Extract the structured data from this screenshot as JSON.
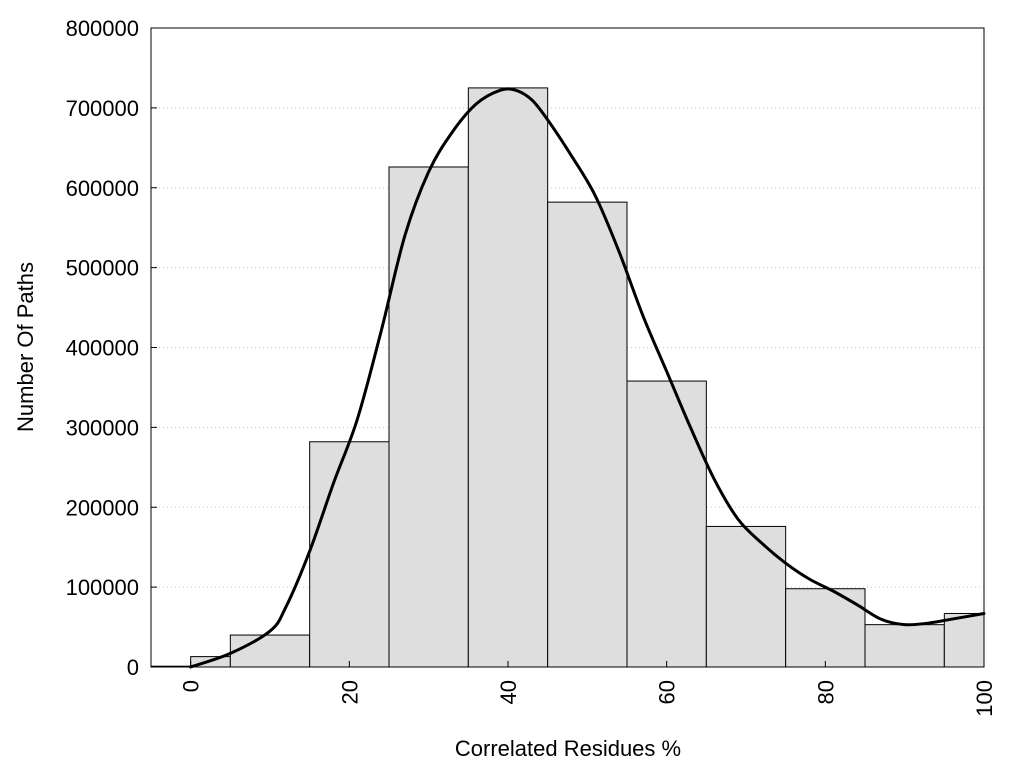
{
  "chart_data": {
    "type": "bar",
    "title": "",
    "xlabel": "Correlated Residues %",
    "ylabel": "Number Of Paths",
    "xlim": [
      -5,
      100
    ],
    "ylim": [
      0,
      800000
    ],
    "xticks": [
      "0",
      "20",
      "40",
      "60",
      "80",
      "100"
    ],
    "yticks": [
      "0",
      "100000",
      "200000",
      "300000",
      "400000",
      "500000",
      "600000",
      "700000",
      "800000"
    ],
    "grid": true,
    "bar_color": "#dedede",
    "edge_color": "#000000",
    "bins": [
      {
        "x0": -5,
        "x1": 0,
        "value": 1000
      },
      {
        "x0": 0,
        "x1": 5,
        "value": 13000
      },
      {
        "x0": 5,
        "x1": 15,
        "value": 40000
      },
      {
        "x0": 15,
        "x1": 25,
        "value": 282000
      },
      {
        "x0": 25,
        "x1": 35,
        "value": 626000
      },
      {
        "x0": 35,
        "x1": 45,
        "value": 725000
      },
      {
        "x0": 45,
        "x1": 55,
        "value": 582000
      },
      {
        "x0": 55,
        "x1": 65,
        "value": 358000
      },
      {
        "x0": 65,
        "x1": 75,
        "value": 176000
      },
      {
        "x0": 75,
        "x1": 85,
        "value": 98000
      },
      {
        "x0": 85,
        "x1": 95,
        "value": 53000
      },
      {
        "x0": 95,
        "x1": 100,
        "value": 67000
      }
    ],
    "curve": [
      [
        0,
        0
      ],
      [
        5,
        17000
      ],
      [
        10,
        45000
      ],
      [
        12,
        75000
      ],
      [
        15,
        145000
      ],
      [
        18,
        230000
      ],
      [
        21,
        310000
      ],
      [
        24,
        420000
      ],
      [
        27,
        540000
      ],
      [
        30,
        620000
      ],
      [
        33,
        670000
      ],
      [
        36,
        705000
      ],
      [
        39,
        722000
      ],
      [
        41,
        722000
      ],
      [
        43,
        710000
      ],
      [
        45,
        685000
      ],
      [
        48,
        640000
      ],
      [
        51,
        590000
      ],
      [
        54,
        520000
      ],
      [
        57,
        440000
      ],
      [
        60,
        370000
      ],
      [
        63,
        300000
      ],
      [
        66,
        235000
      ],
      [
        69,
        185000
      ],
      [
        72,
        155000
      ],
      [
        75,
        130000
      ],
      [
        78,
        110000
      ],
      [
        81,
        95000
      ],
      [
        84,
        78000
      ],
      [
        87,
        60000
      ],
      [
        90,
        53000
      ],
      [
        93,
        55000
      ],
      [
        96,
        60000
      ],
      [
        100,
        67000
      ]
    ]
  }
}
